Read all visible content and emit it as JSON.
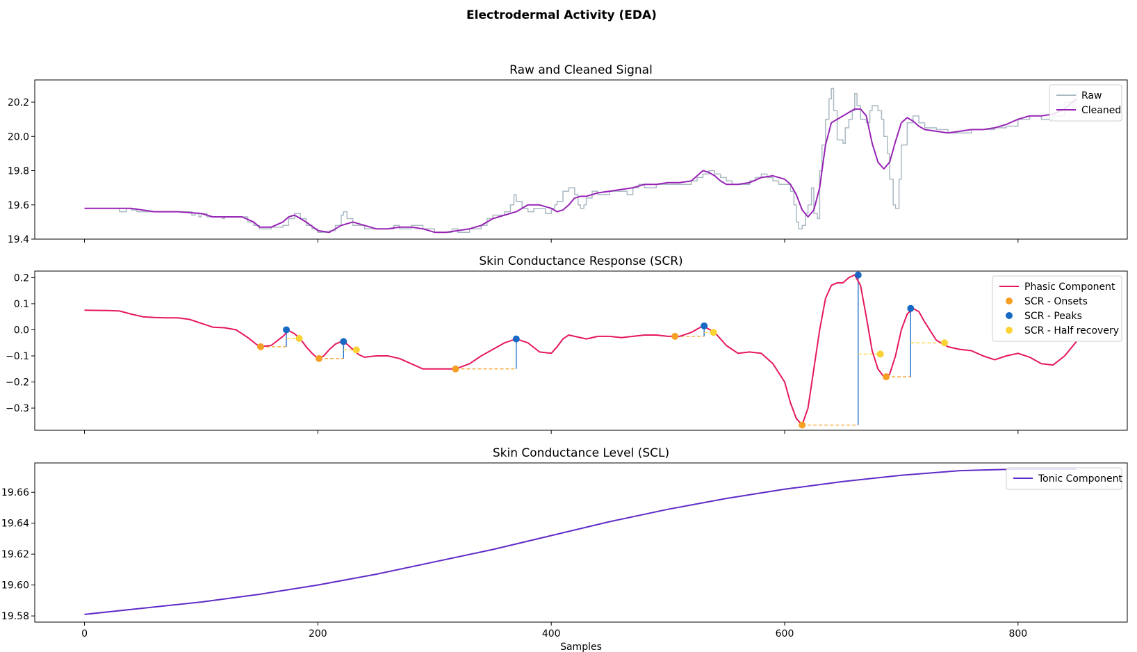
{
  "figure": {
    "title": "Electrodermal Activity (EDA)"
  },
  "chart_data": [
    {
      "type": "line",
      "title": "Raw and Cleaned Signal",
      "xlabel": "",
      "ylabel": "",
      "xlim": [
        -42.6,
        893.6
      ],
      "ylim": [
        19.4,
        20.33
      ],
      "xticks": [
        0,
        200,
        400,
        600,
        800
      ],
      "show_xtick_labels": false,
      "yticks": [
        19.4,
        19.6,
        19.8,
        20.0,
        20.2
      ],
      "ytick_labels": [
        "19.4",
        "19.6",
        "19.8",
        "20.0",
        "20.2"
      ],
      "legend": {
        "placement": "top-right",
        "entries": [
          "Raw",
          "Cleaned"
        ]
      },
      "series": [
        {
          "name": "Raw",
          "color": "#a9b8c2",
          "style": "step",
          "x": [
            0,
            20,
            28,
            30,
            36,
            40,
            45,
            60,
            80,
            90,
            92,
            95,
            98,
            100,
            105,
            110,
            115,
            118,
            120,
            135,
            140,
            145,
            150,
            160,
            170,
            175,
            180,
            185,
            190,
            195,
            200,
            205,
            210,
            215,
            220,
            222,
            225,
            230,
            240,
            250,
            260,
            265,
            270,
            280,
            290,
            300,
            310,
            315,
            320,
            330,
            340,
            345,
            350,
            360,
            365,
            368,
            370,
            375,
            380,
            385,
            390,
            395,
            400,
            403,
            405,
            410,
            415,
            420,
            423,
            425,
            428,
            430,
            435,
            440,
            450,
            460,
            465,
            470,
            475,
            480,
            490,
            500,
            510,
            520,
            525,
            530,
            535,
            540,
            545,
            550,
            555,
            560,
            565,
            570,
            575,
            580,
            585,
            590,
            595,
            600,
            605,
            608,
            610,
            612,
            615,
            618,
            620,
            623,
            625,
            628,
            630,
            632,
            635,
            638,
            640,
            642,
            645,
            650,
            652,
            655,
            658,
            660,
            662,
            665,
            670,
            673,
            675,
            680,
            683,
            685,
            688,
            690,
            693,
            695,
            698,
            700,
            705,
            710,
            715,
            720,
            730,
            740,
            750,
            760,
            770,
            780,
            790,
            800,
            810,
            820,
            830,
            840,
            850
          ],
          "y": [
            19.58,
            19.58,
            19.58,
            19.56,
            19.58,
            19.57,
            19.56,
            19.56,
            19.56,
            19.56,
            19.54,
            19.55,
            19.53,
            19.55,
            19.53,
            19.53,
            19.53,
            19.52,
            19.53,
            19.53,
            19.5,
            19.48,
            19.46,
            19.47,
            19.48,
            19.52,
            19.55,
            19.52,
            19.48,
            19.46,
            19.44,
            19.44,
            19.45,
            19.48,
            19.54,
            19.56,
            19.52,
            19.48,
            19.46,
            19.46,
            19.46,
            19.48,
            19.46,
            19.48,
            19.46,
            19.44,
            19.44,
            19.46,
            19.44,
            19.46,
            19.48,
            19.52,
            19.54,
            19.56,
            19.6,
            19.66,
            19.62,
            19.58,
            19.56,
            19.58,
            19.58,
            19.55,
            19.58,
            19.6,
            19.62,
            19.68,
            19.7,
            19.66,
            19.6,
            19.58,
            19.6,
            19.64,
            19.68,
            19.66,
            19.68,
            19.68,
            19.66,
            19.7,
            19.72,
            19.7,
            19.72,
            19.72,
            19.72,
            19.74,
            19.76,
            19.78,
            19.8,
            19.78,
            19.76,
            19.74,
            19.72,
            19.72,
            19.72,
            19.74,
            19.76,
            19.78,
            19.76,
            19.74,
            19.72,
            19.72,
            19.68,
            19.6,
            19.5,
            19.46,
            19.48,
            19.55,
            19.6,
            19.7,
            19.55,
            19.52,
            19.8,
            19.95,
            20.1,
            20.22,
            20.28,
            20.15,
            19.98,
            19.96,
            20.05,
            20.1,
            20.15,
            20.25,
            20.18,
            20.1,
            20.08,
            20.15,
            20.18,
            20.15,
            20.1,
            20.0,
            19.9,
            19.75,
            19.6,
            19.58,
            19.75,
            19.95,
            20.08,
            20.12,
            20.08,
            20.05,
            20.04,
            20.02,
            20.02,
            20.04,
            20.04,
            20.05,
            20.06,
            20.1,
            20.12,
            20.1,
            20.12,
            20.2,
            20.26
          ]
        },
        {
          "name": "Cleaned",
          "color": "#9723b5",
          "style": "line",
          "x": [
            0,
            20,
            40,
            60,
            80,
            100,
            110,
            120,
            135,
            145,
            150,
            160,
            170,
            175,
            180,
            190,
            200,
            210,
            220,
            230,
            240,
            250,
            260,
            270,
            280,
            290,
            300,
            310,
            320,
            330,
            340,
            350,
            360,
            370,
            380,
            390,
            400,
            405,
            410,
            415,
            420,
            425,
            430,
            440,
            450,
            460,
            470,
            480,
            490,
            500,
            510,
            520,
            525,
            530,
            535,
            540,
            545,
            550,
            560,
            570,
            580,
            590,
            600,
            605,
            610,
            615,
            620,
            625,
            630,
            635,
            640,
            645,
            650,
            655,
            660,
            665,
            670,
            675,
            680,
            685,
            690,
            695,
            700,
            705,
            710,
            715,
            720,
            730,
            740,
            750,
            760,
            770,
            780,
            790,
            800,
            810,
            820,
            830,
            840,
            850
          ],
          "y": [
            19.58,
            19.58,
            19.58,
            19.56,
            19.56,
            19.55,
            19.53,
            19.53,
            19.53,
            19.5,
            19.47,
            19.47,
            19.5,
            19.53,
            19.54,
            19.5,
            19.45,
            19.44,
            19.48,
            19.5,
            19.48,
            19.46,
            19.46,
            19.47,
            19.47,
            19.46,
            19.44,
            19.44,
            19.45,
            19.46,
            19.48,
            19.52,
            19.54,
            19.56,
            19.6,
            19.6,
            19.58,
            19.56,
            19.57,
            19.6,
            19.64,
            19.65,
            19.65,
            19.67,
            19.68,
            19.69,
            19.7,
            19.72,
            19.72,
            19.73,
            19.73,
            19.74,
            19.77,
            19.8,
            19.79,
            19.77,
            19.74,
            19.72,
            19.72,
            19.73,
            19.76,
            19.77,
            19.75,
            19.72,
            19.66,
            19.57,
            19.53,
            19.57,
            19.7,
            19.95,
            20.08,
            20.1,
            20.12,
            20.14,
            20.16,
            20.16,
            20.12,
            19.96,
            19.85,
            19.81,
            19.85,
            19.97,
            20.08,
            20.11,
            20.09,
            20.06,
            20.04,
            20.03,
            20.02,
            20.03,
            20.04,
            20.04,
            20.05,
            20.07,
            20.1,
            20.12,
            20.12,
            20.13,
            20.16,
            20.22
          ]
        }
      ]
    },
    {
      "type": "line",
      "title": "Skin Conductance Response (SCR)",
      "xlabel": "",
      "ylabel": "",
      "xlim": [
        -42.6,
        893.6
      ],
      "ylim": [
        -0.385,
        0.225
      ],
      "xticks": [
        0,
        200,
        400,
        600,
        800
      ],
      "show_xtick_labels": false,
      "yticks": [
        -0.3,
        -0.2,
        -0.1,
        0.0,
        0.1,
        0.2
      ],
      "ytick_labels": [
        "−0.3",
        "−0.2",
        "−0.1",
        "0.0",
        "0.1",
        "0.2"
      ],
      "legend": {
        "placement": "top-right",
        "entries": [
          "Phasic Component",
          "SCR - Onsets",
          "SCR - Peaks",
          "SCR - Half recovery"
        ]
      },
      "series": [
        {
          "name": "Phasic Component",
          "color": "#e5175c",
          "style": "line",
          "x": [
            0,
            20,
            30,
            40,
            50,
            60,
            70,
            80,
            90,
            100,
            110,
            120,
            130,
            140,
            150,
            160,
            170,
            175,
            180,
            185,
            190,
            195,
            200,
            205,
            210,
            215,
            220,
            225,
            230,
            235,
            240,
            250,
            260,
            270,
            280,
            290,
            300,
            310,
            318,
            330,
            340,
            350,
            360,
            370,
            380,
            390,
            400,
            405,
            410,
            415,
            420,
            430,
            440,
            450,
            460,
            470,
            480,
            490,
            500,
            510,
            520,
            530,
            540,
            550,
            560,
            570,
            580,
            590,
            600,
            605,
            610,
            615,
            620,
            625,
            630,
            635,
            640,
            645,
            650,
            655,
            660,
            665,
            670,
            675,
            680,
            685,
            690,
            695,
            700,
            705,
            710,
            715,
            720,
            730,
            740,
            750,
            760,
            770,
            780,
            790,
            800,
            810,
            820,
            830,
            840,
            850
          ],
          "y": [
            0.075,
            0.074,
            0.072,
            0.06,
            0.05,
            0.047,
            0.046,
            0.046,
            0.04,
            0.025,
            0.01,
            0.008,
            0.0,
            -0.03,
            -0.065,
            -0.06,
            -0.025,
            -0.003,
            -0.015,
            -0.035,
            -0.065,
            -0.09,
            -0.11,
            -0.1,
            -0.075,
            -0.055,
            -0.045,
            -0.055,
            -0.075,
            -0.095,
            -0.105,
            -0.1,
            -0.1,
            -0.11,
            -0.13,
            -0.15,
            -0.15,
            -0.15,
            -0.15,
            -0.13,
            -0.1,
            -0.075,
            -0.05,
            -0.035,
            -0.05,
            -0.085,
            -0.09,
            -0.065,
            -0.035,
            -0.02,
            -0.025,
            -0.035,
            -0.025,
            -0.025,
            -0.03,
            -0.025,
            -0.02,
            -0.02,
            -0.025,
            -0.025,
            -0.01,
            0.015,
            -0.01,
            -0.06,
            -0.09,
            -0.085,
            -0.09,
            -0.13,
            -0.2,
            -0.28,
            -0.34,
            -0.365,
            -0.3,
            -0.15,
            0.0,
            0.12,
            0.17,
            0.18,
            0.18,
            0.2,
            0.21,
            0.17,
            0.05,
            -0.08,
            -0.15,
            -0.18,
            -0.17,
            -0.1,
            0.0,
            0.06,
            0.082,
            0.07,
            0.03,
            -0.04,
            -0.065,
            -0.075,
            -0.08,
            -0.1,
            -0.115,
            -0.1,
            -0.09,
            -0.105,
            -0.13,
            -0.135,
            -0.1,
            -0.045
          ]
        }
      ],
      "onsets": {
        "name": "SCR - Onsets",
        "color": "#f59f24",
        "x": [
          151,
          201,
          318,
          506,
          615,
          687
        ],
        "y": [
          -0.065,
          -0.11,
          -0.15,
          -0.025,
          -0.365,
          -0.18
        ]
      },
      "peaks": {
        "name": "SCR - Peaks",
        "color": "#1769c4",
        "x": [
          173,
          222,
          370,
          531,
          663,
          708
        ],
        "y": [
          0.0,
          -0.045,
          -0.035,
          0.015,
          0.21,
          0.082
        ]
      },
      "half_recovery": {
        "name": "SCR - Half recovery",
        "color": "#fad234",
        "x": [
          184,
          233,
          539,
          682,
          737
        ],
        "y": [
          -0.033,
          -0.077,
          -0.01,
          -0.093,
          -0.05
        ]
      },
      "rise_lines": [
        [
          151,
          173
        ],
        [
          201,
          222
        ],
        [
          318,
          370
        ],
        [
          506,
          531
        ],
        [
          615,
          663
        ],
        [
          687,
          708
        ]
      ],
      "recovery_lines": [
        [
          173,
          184
        ],
        [
          222,
          233
        ],
        [
          531,
          539
        ],
        [
          663,
          682
        ],
        [
          708,
          737
        ]
      ]
    },
    {
      "type": "line",
      "title": "Skin Conductance Level (SCL)",
      "xlabel": "Samples",
      "ylabel": "",
      "xlim": [
        -42.6,
        893.6
      ],
      "ylim": [
        19.576,
        19.679
      ],
      "xticks": [
        0,
        200,
        400,
        600,
        800
      ],
      "show_xtick_labels": true,
      "xtick_labels": [
        "0",
        "200",
        "400",
        "600",
        "800"
      ],
      "yticks": [
        19.58,
        19.6,
        19.62,
        19.64,
        19.66
      ],
      "ytick_labels": [
        "19.58",
        "19.60",
        "19.62",
        "19.64",
        "19.66"
      ],
      "legend": {
        "placement": "top-right",
        "entries": [
          "Tonic Component"
        ]
      },
      "series": [
        {
          "name": "Tonic Component",
          "color": "#5f2bc8",
          "style": "line",
          "x": [
            0,
            50,
            100,
            150,
            200,
            250,
            300,
            350,
            400,
            450,
            500,
            550,
            600,
            650,
            700,
            750,
            800,
            850
          ],
          "y": [
            19.581,
            19.585,
            19.589,
            19.594,
            19.6,
            19.607,
            19.615,
            19.623,
            19.632,
            19.641,
            19.649,
            19.656,
            19.662,
            19.667,
            19.671,
            19.674,
            19.675,
            19.675
          ]
        }
      ]
    }
  ]
}
